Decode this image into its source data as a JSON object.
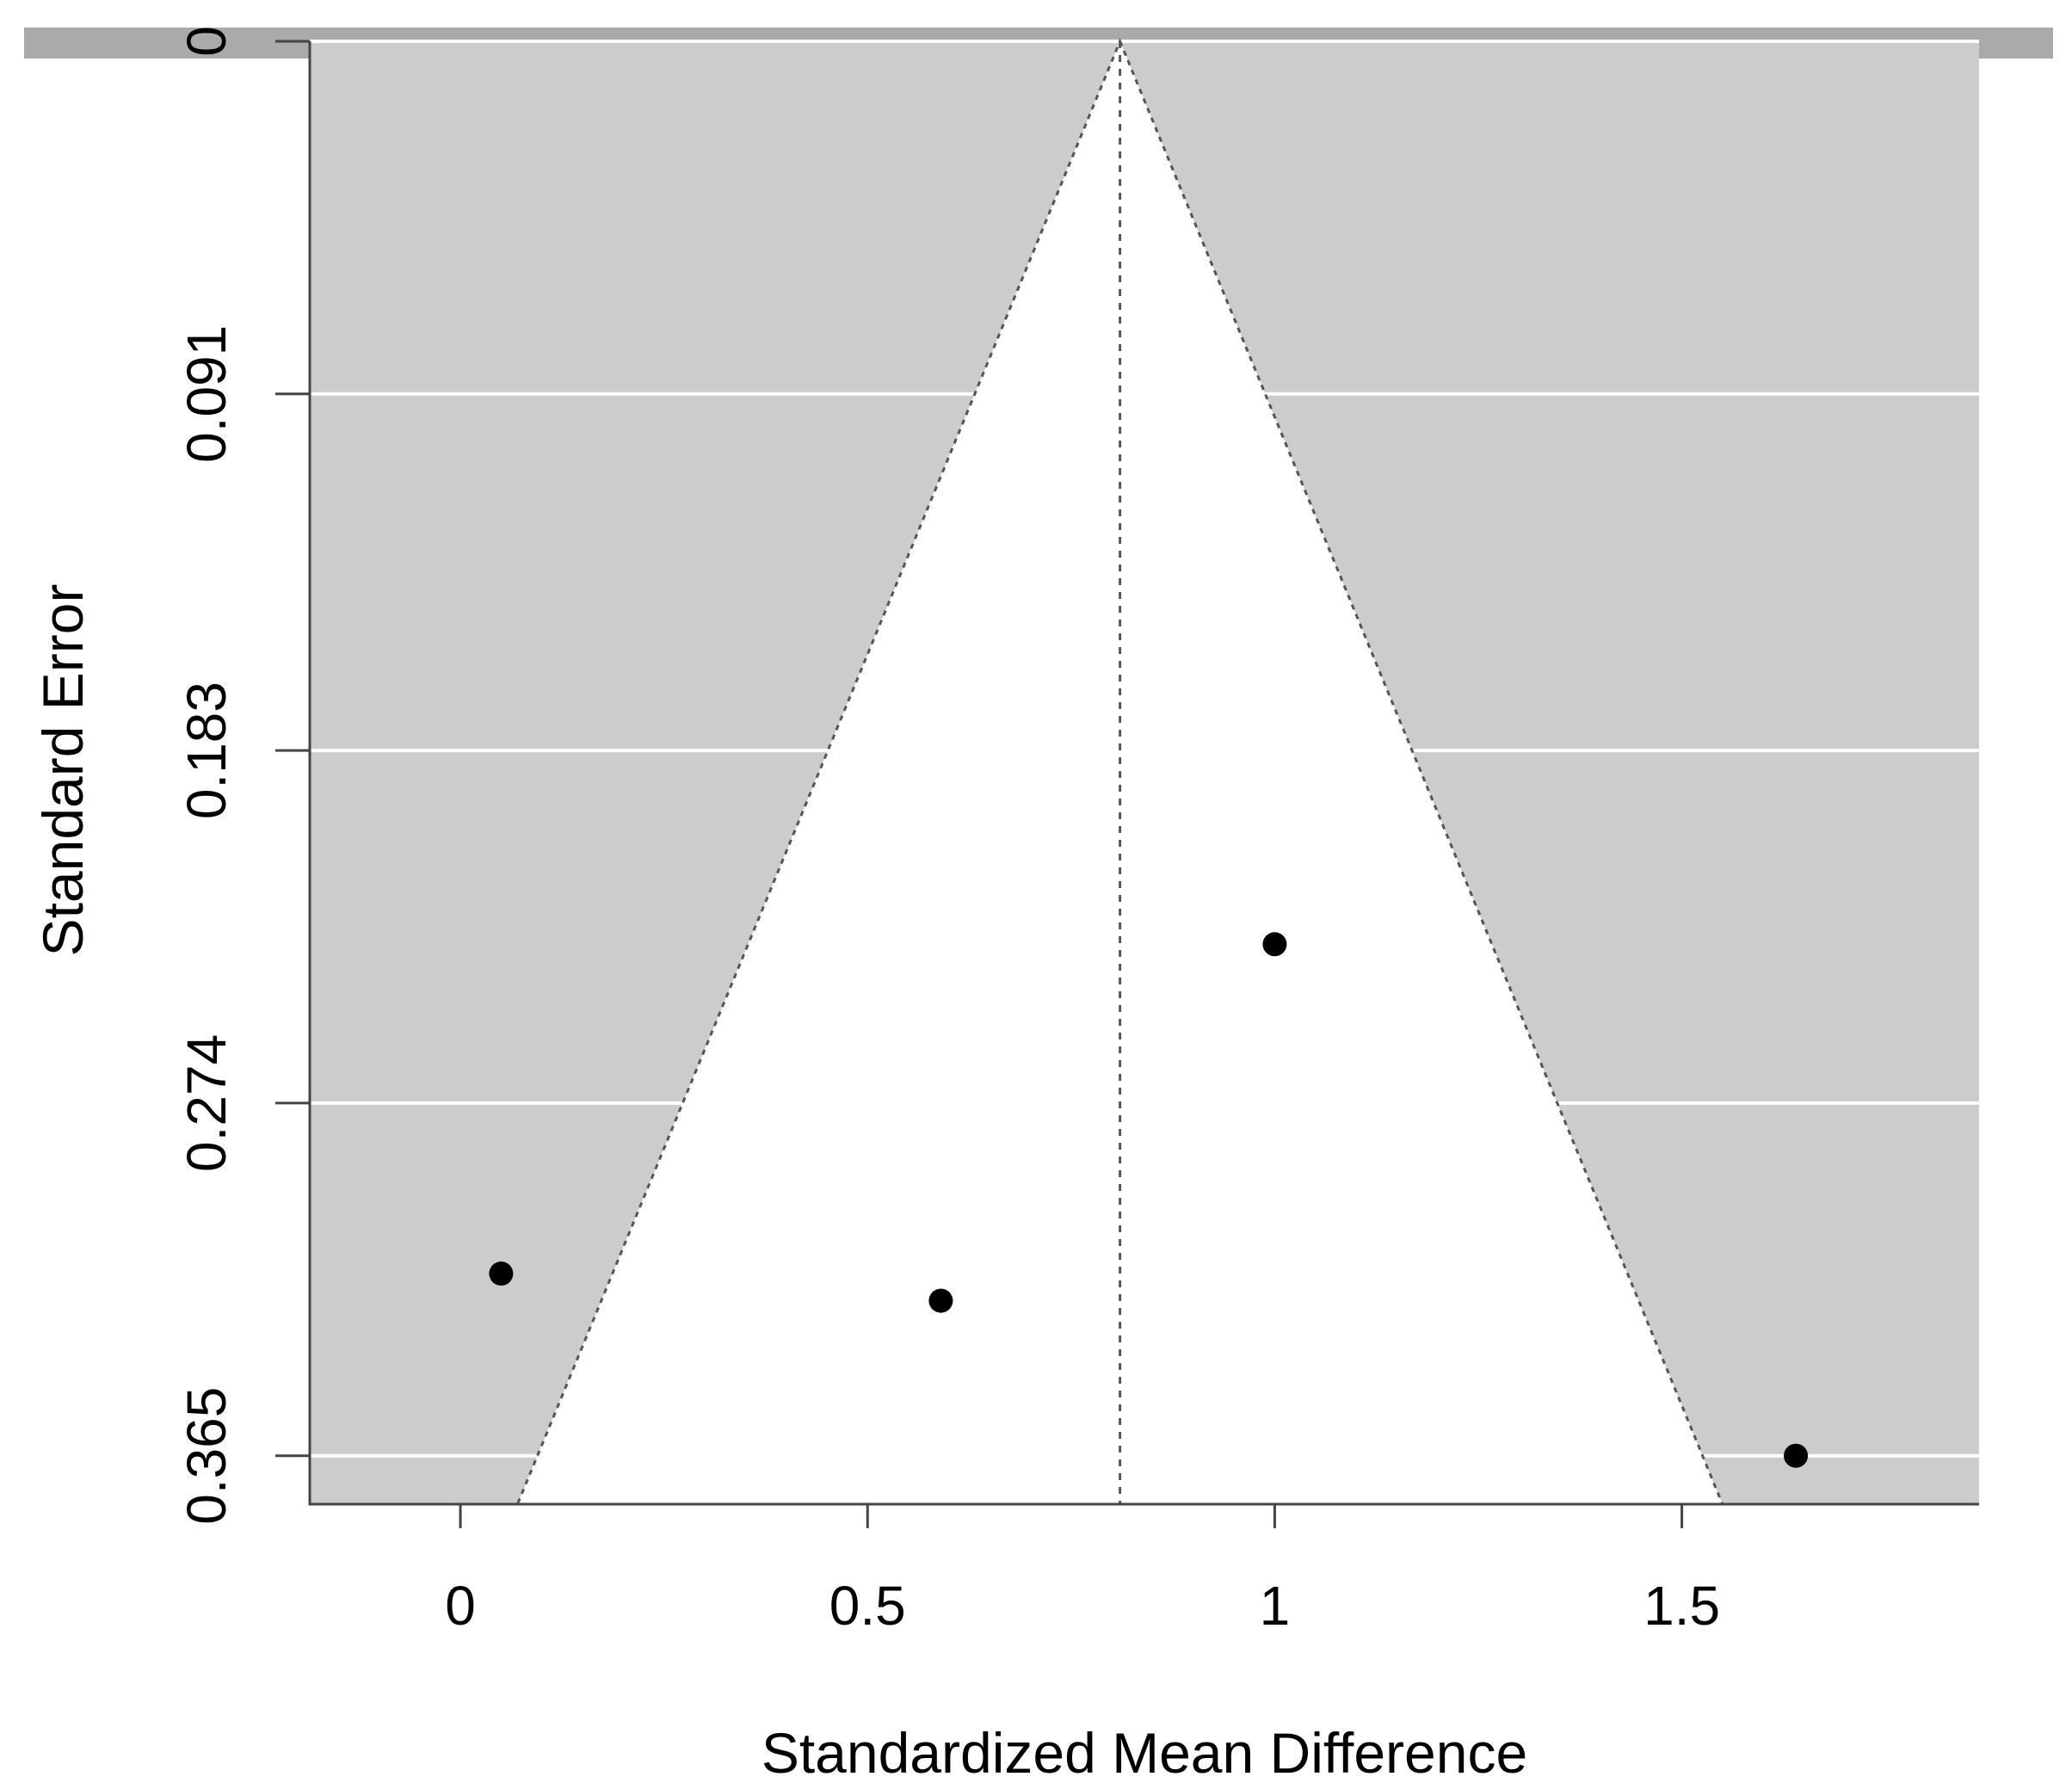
{
  "chart_data": {
    "type": "scatter",
    "subtype": "funnel-plot",
    "xlabel": "Standardized Mean Difference",
    "ylabel": "Standard Error",
    "xlim": [
      -0.185,
      1.865
    ],
    "ylim": [
      0.3775,
      0
    ],
    "y_reversed": true,
    "xticks": [
      0,
      0.5,
      1,
      1.5
    ],
    "xtick_labels": [
      "0",
      "0.5",
      "1",
      "1.5"
    ],
    "yticks": [
      0,
      0.091,
      0.183,
      0.274,
      0.365
    ],
    "ytick_labels": [
      "0",
      "0.091",
      "0.183",
      "0.274",
      "0.365"
    ],
    "summary_estimate": 0.81,
    "funnel_z": 1.96,
    "points": [
      {
        "x": 0.05,
        "y": 0.318
      },
      {
        "x": 0.59,
        "y": 0.325
      },
      {
        "x": 1.0,
        "y": 0.233
      },
      {
        "x": 1.64,
        "y": 0.365
      }
    ],
    "grid": true,
    "colors": {
      "background": "#cccccc",
      "funnel": "#ffffff",
      "gridline": "#ffffff",
      "points": "#000000",
      "top_bar": "#aaaaaa"
    }
  }
}
